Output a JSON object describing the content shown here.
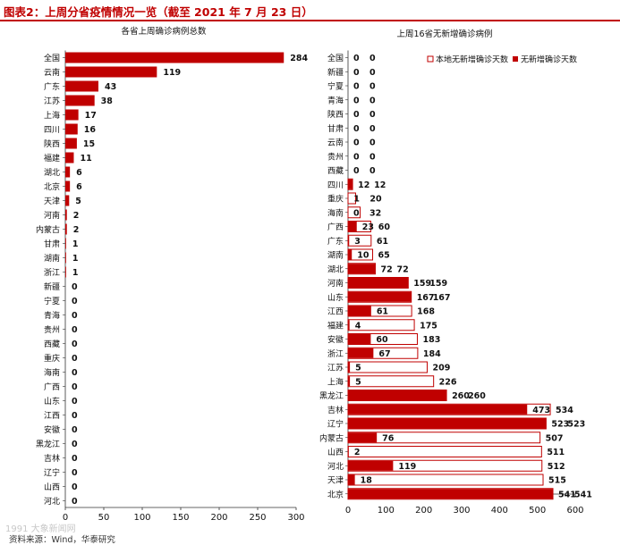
{
  "header": {
    "title": "图表2：上周分省疫情情况一览（截至 2021 年 7 月 23 日）"
  },
  "footer": {
    "source": "资料来源：Wind，华泰研究",
    "watermark": "1991 大象新闻网"
  },
  "colors": {
    "accent": "#c00000",
    "bar": "#c00000",
    "outline": "#c00000"
  },
  "chart_data": [
    {
      "type": "bar",
      "orientation": "horizontal",
      "title": "各省上周确诊病例总数",
      "categories": [
        "全国",
        "云南",
        "广东",
        "江苏",
        "上海",
        "四川",
        "陕西",
        "福建",
        "湖北",
        "北京",
        "天津",
        "河南",
        "内蒙古",
        "甘肃",
        "湖南",
        "浙江",
        "新疆",
        "宁夏",
        "青海",
        "贵州",
        "西藏",
        "重庆",
        "海南",
        "广西",
        "山东",
        "江西",
        "安徽",
        "黑龙江",
        "吉林",
        "辽宁",
        "山西",
        "河北"
      ],
      "values": [
        284,
        119,
        43,
        38,
        17,
        16,
        15,
        11,
        6,
        6,
        5,
        2,
        2,
        1,
        1,
        1,
        0,
        0,
        0,
        0,
        0,
        0,
        0,
        0,
        0,
        0,
        0,
        0,
        0,
        0,
        0,
        0
      ],
      "xlim": [
        0,
        300
      ],
      "xticks": [
        0,
        50,
        100,
        150,
        200,
        250,
        300
      ]
    },
    {
      "type": "bar",
      "orientation": "horizontal",
      "title": "上周16省无新增确诊病例",
      "categories": [
        "全国",
        "新疆",
        "宁夏",
        "青海",
        "陕西",
        "甘肃",
        "云南",
        "贵州",
        "西藏",
        "四川",
        "重庆",
        "海南",
        "广西",
        "广东",
        "湖南",
        "湖北",
        "河南",
        "山东",
        "江西",
        "福建",
        "安徽",
        "浙江",
        "江苏",
        "上海",
        "黑龙江",
        "吉林",
        "辽宁",
        "内蒙古",
        "山西",
        "河北",
        "天津",
        "北京"
      ],
      "series": [
        {
          "name": "本地无新增确诊天数",
          "style": "outline",
          "values": [
            0,
            0,
            0,
            0,
            0,
            0,
            0,
            0,
            0,
            12,
            20,
            32,
            60,
            61,
            65,
            72,
            159,
            167,
            168,
            175,
            183,
            184,
            209,
            226,
            260,
            534,
            523,
            507,
            511,
            512,
            515,
            541
          ]
        },
        {
          "name": "无新增确诊天数",
          "style": "filled",
          "values": [
            0,
            0,
            0,
            0,
            0,
            0,
            0,
            0,
            0,
            12,
            1,
            0,
            23,
            3,
            10,
            72,
            159,
            167,
            61,
            4,
            60,
            67,
            5,
            5,
            260,
            473,
            523,
            76,
            2,
            119,
            18,
            541
          ]
        }
      ],
      "xlim": [
        0,
        600
      ],
      "xticks": [
        0,
        100,
        200,
        300,
        400,
        500,
        600
      ]
    }
  ]
}
